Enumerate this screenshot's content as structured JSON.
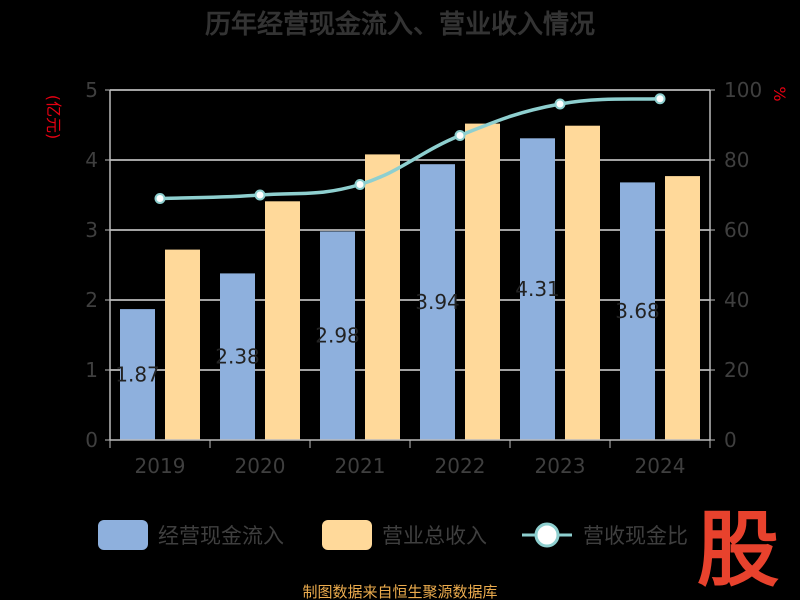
{
  "chart_data": {
    "type": "bar",
    "title": "历年经营现金流入、营业收入情况",
    "categories": [
      "2019",
      "2020",
      "2021",
      "2022",
      "2023",
      "2024"
    ],
    "series": [
      {
        "name": "经营现金流入",
        "type": "bar",
        "axis": "left",
        "values": [
          1.87,
          2.38,
          2.98,
          3.94,
          4.31,
          3.68
        ],
        "labels": [
          "1.87",
          "2.38",
          "2.98",
          "3.94",
          "4.31",
          "3.68"
        ],
        "color": "#8eb0dd"
      },
      {
        "name": "营业总收入",
        "type": "bar",
        "axis": "left",
        "values": [
          2.72,
          3.41,
          4.08,
          4.52,
          4.49,
          3.77
        ],
        "color": "#ffd99a"
      },
      {
        "name": "营收现金比",
        "type": "line",
        "axis": "right",
        "values": [
          69,
          70,
          73,
          87,
          96,
          97.5
        ],
        "color": "#8ecfcf"
      }
    ],
    "y_left": {
      "unit_label": "(亿元)",
      "ticks": [
        "0",
        "1",
        "2",
        "3",
        "4",
        "5"
      ],
      "ylim": [
        0,
        5
      ]
    },
    "y_right": {
      "unit_label": "%",
      "ticks": [
        "0",
        "20",
        "40",
        "60",
        "80",
        "100"
      ],
      "ylim": [
        0,
        100
      ]
    },
    "grid": true,
    "legend_position": "bottom"
  },
  "source": "制图数据来自恒生聚源数据库",
  "watermark": "股",
  "colors": {
    "background": "#000000",
    "axis": "#bbbbbb",
    "grid": "#d9d9d9",
    "unit": "#e60012",
    "source": "#ebab4d",
    "watermark": "#e8422d"
  }
}
